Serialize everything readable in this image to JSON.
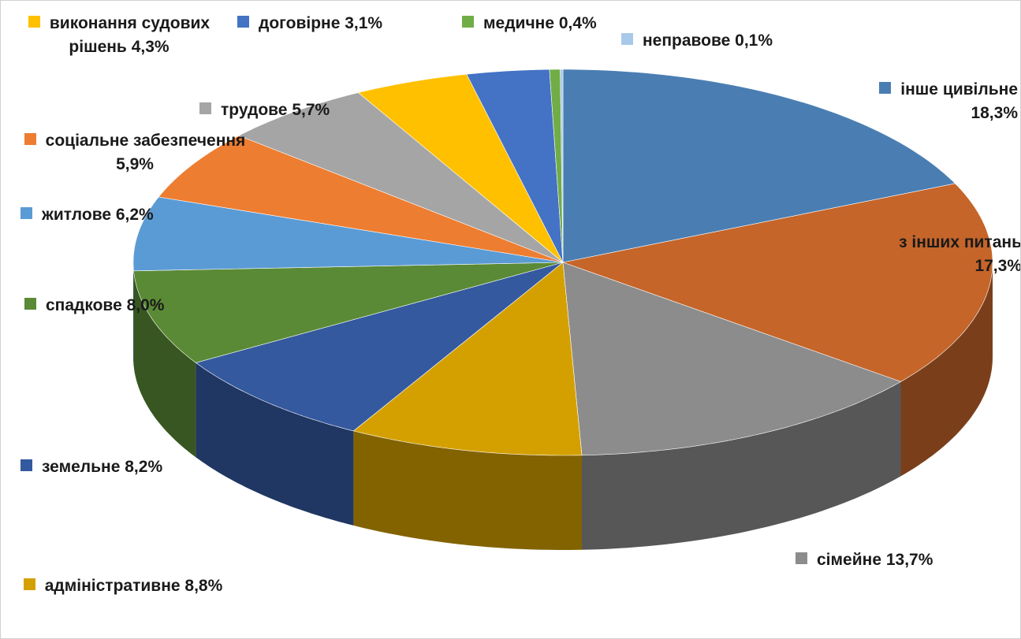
{
  "chart_data": {
    "type": "pie3d",
    "categories": [
      "інше цивільне",
      "з інших питань",
      "сімейне",
      "адміністративне",
      "земельне",
      "спадкове",
      "житлове",
      "соціальне забезпечення",
      "трудове",
      "виконання судових рішень",
      "договірне",
      "медичне",
      "неправове"
    ],
    "values": [
      18.3,
      17.3,
      13.7,
      8.8,
      8.2,
      8.0,
      6.2,
      5.9,
      5.7,
      4.3,
      3.1,
      0.4,
      0.1
    ],
    "value_labels": [
      "18,3%",
      "17,3%",
      "13,7%",
      "8,8%",
      "8,2%",
      "8,0%",
      "6,2%",
      "5,9%",
      "5,7%",
      "4,3%",
      "3,1%",
      "0,4%",
      "0,1%"
    ],
    "colors": [
      "#4a7eb3",
      "#c5652a",
      "#8c8c8c",
      "#d4a000",
      "#34599f",
      "#5a8a35",
      "#5b9bd5",
      "#ed7d31",
      "#a5a5a5",
      "#ffc000",
      "#4472c4",
      "#70ad47",
      "#a9c9ea"
    ]
  }
}
